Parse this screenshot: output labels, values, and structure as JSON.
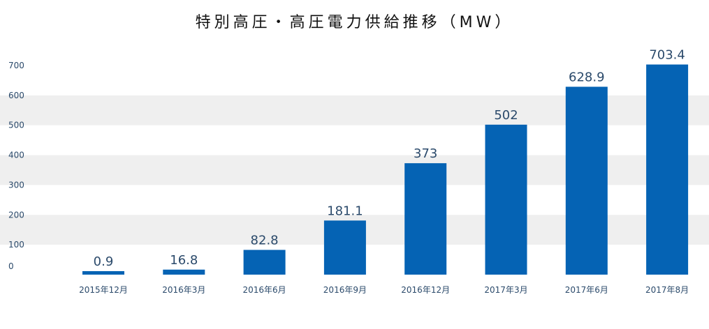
{
  "chart_data": {
    "type": "bar",
    "title": "特別高圧・高圧電力供給推移（MW）",
    "categories": [
      "2015年12月",
      "2016年3月",
      "2016年6月",
      "2016年9月",
      "2016年12月",
      "2017年3月",
      "2017年6月",
      "2017年8月"
    ],
    "values": [
      0.9,
      16.8,
      82.8,
      181.1,
      373,
      502,
      628.9,
      703.4
    ],
    "data_labels": [
      "0.9",
      "16.8",
      "82.8",
      "181.1",
      "373",
      "502",
      "628.9",
      "703.4"
    ],
    "yticks": [
      0,
      100,
      200,
      300,
      400,
      500,
      600,
      700
    ],
    "ylim": [
      0,
      700
    ],
    "xlabel": "",
    "ylabel": "",
    "grid": "alternating horizontal bands",
    "legend": "none",
    "colors": {
      "bar": "#0563b4",
      "band": "#efefef",
      "text": "#2b4a6b"
    }
  }
}
